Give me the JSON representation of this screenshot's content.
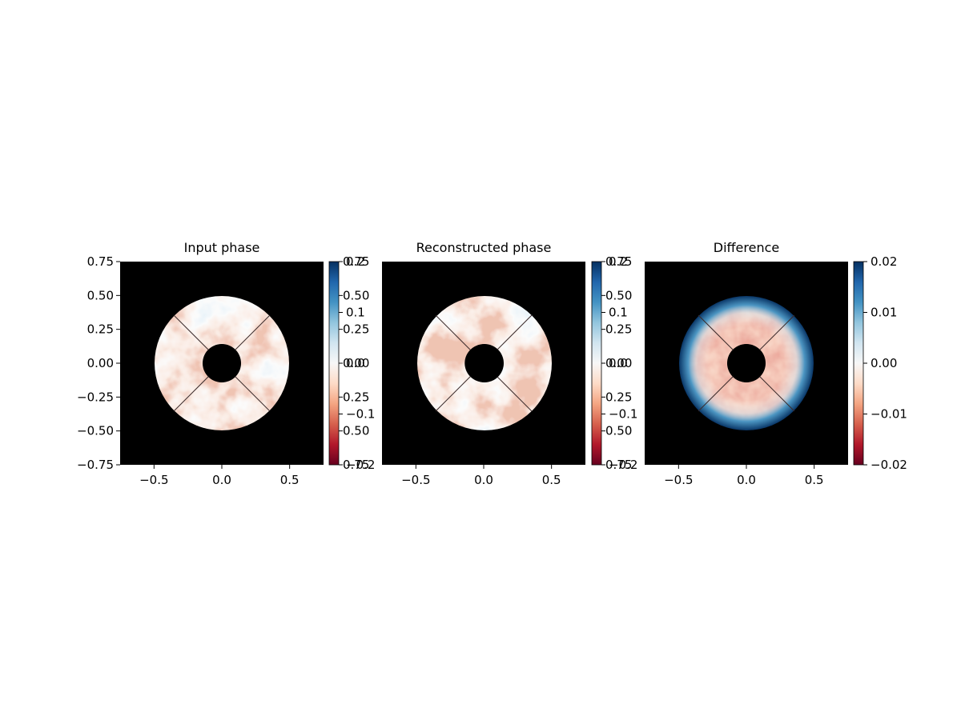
{
  "chart_data": [
    {
      "type": "heatmap",
      "title": "Input phase",
      "xlabel": "",
      "ylabel": "",
      "xlim": [
        -0.75,
        0.75
      ],
      "ylim": [
        -0.75,
        0.75
      ],
      "x_ticks": [
        "−0.5",
        "0.0",
        "0.5"
      ],
      "y_ticks": [
        "0.75",
        "0.50",
        "0.25",
        "0.00",
        "−0.25",
        "−0.50",
        "−0.75"
      ],
      "pupil": {
        "outer_radius": 0.5,
        "inner_radius": 0.14,
        "spider_angles_deg": [
          45,
          135,
          225,
          315
        ]
      },
      "colormap": "RdBu",
      "colorbar": {
        "min": -0.2,
        "max": 0.2,
        "ticks_primary": [
          "0.75",
          "0.50",
          "0.25",
          "0.00",
          "0.25",
          "0.50",
          "0.75"
        ],
        "ticks_secondary": [
          "0.2",
          "0.1",
          "0.0",
          "−0.1",
          "−0.2"
        ]
      },
      "grid": false
    },
    {
      "type": "heatmap",
      "title": "Reconstructed phase",
      "xlabel": "",
      "ylabel": "",
      "xlim": [
        -0.75,
        0.75
      ],
      "ylim": [
        -0.75,
        0.75
      ],
      "x_ticks": [
        "−0.5",
        "0.0",
        "0.5"
      ],
      "pupil": {
        "outer_radius": 0.5,
        "inner_radius": 0.14,
        "spider_angles_deg": [
          45,
          135,
          225,
          315
        ]
      },
      "colormap": "RdBu",
      "colorbar": {
        "min": -0.2,
        "max": 0.2,
        "ticks_primary": [
          "0.75",
          "0.50",
          "0.25",
          "0.00",
          "0.25",
          "0.50",
          "0.75"
        ],
        "ticks_secondary": [
          "0.2",
          "0.1",
          "0.0",
          "−0.1",
          "−0.2"
        ]
      },
      "grid": false
    },
    {
      "type": "heatmap",
      "title": "Difference",
      "xlabel": "",
      "ylabel": "",
      "xlim": [
        -0.75,
        0.75
      ],
      "ylim": [
        -0.75,
        0.75
      ],
      "x_ticks": [
        "−0.5",
        "0.0",
        "0.5"
      ],
      "pupil": {
        "outer_radius": 0.5,
        "inner_radius": 0.14,
        "spider_angles_deg": [
          45,
          135,
          225,
          315
        ]
      },
      "colormap": "RdBu",
      "colorbar": {
        "min": -0.02,
        "max": 0.02,
        "ticks": [
          "0.02",
          "0.01",
          "0.00",
          "−0.01",
          "−0.02"
        ]
      },
      "grid": false
    }
  ]
}
